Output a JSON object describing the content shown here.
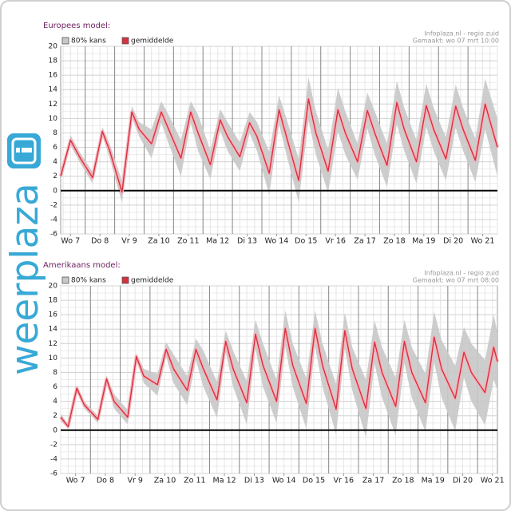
{
  "logo": "weerplaza",
  "chart_data": [
    {
      "type": "line",
      "title": "Europees model:",
      "source": "Infoplaza.nl - regio zuid",
      "created": "Gemaakt: wo 07 mrt 10:00",
      "xlim": [
        4,
        360
      ],
      "ylim": [
        -6,
        20
      ],
      "yticks": [
        -6,
        -4,
        -2,
        0,
        2,
        4,
        6,
        8,
        10,
        12,
        14,
        16,
        18,
        20
      ],
      "grid": true,
      "xticks": [
        {
          "value": 12,
          "label": "Wo 7"
        },
        {
          "value": 36,
          "label": "Do 8"
        },
        {
          "value": 60,
          "label": "Vr 9"
        },
        {
          "value": 84,
          "label": "Za 10"
        },
        {
          "value": 108,
          "label": "Zo 11"
        },
        {
          "value": 132,
          "label": "Ma 12"
        },
        {
          "value": 156,
          "label": "Di 13"
        },
        {
          "value": 180,
          "label": "Wo 14"
        },
        {
          "value": 204,
          "label": "Do 15"
        },
        {
          "value": 228,
          "label": "Vr 16"
        },
        {
          "value": 252,
          "label": "Za 17"
        },
        {
          "value": 276,
          "label": "Zo 18"
        },
        {
          "value": 300,
          "label": "Ma 19"
        },
        {
          "value": 324,
          "label": "Di 20"
        },
        {
          "value": 348,
          "label": "Wo 21"
        }
      ],
      "x": [
        4,
        12,
        20,
        30,
        38,
        44,
        54,
        62,
        68,
        78,
        86,
        92,
        102,
        110,
        116,
        126,
        134,
        140,
        150,
        158,
        164,
        174,
        182,
        188,
        198,
        206,
        212,
        222,
        230,
        236,
        246,
        254,
        260,
        270,
        278,
        284,
        294,
        302,
        308,
        318,
        326,
        332,
        342,
        350,
        360
      ],
      "series": [
        {
          "name": "80% kans",
          "color": "#c8c8c8",
          "low": [
            1.5,
            6.3,
            3.8,
            1.0,
            7.6,
            4.5,
            -1.7,
            10.1,
            7.5,
            4.5,
            9.4,
            6.5,
            2.0,
            9.4,
            5.5,
            1.6,
            8.3,
            5.5,
            2.7,
            7.9,
            5.5,
            -0.6,
            9.2,
            5.0,
            -1.6,
            9.7,
            5.0,
            -0.3,
            8.2,
            5.0,
            1.5,
            8.6,
            5.0,
            0.5,
            9.2,
            5.5,
            1.0,
            8.8,
            5.5,
            1.4,
            8.7,
            5.5,
            1.2,
            8.5,
            2.0
          ],
          "high": [
            2.5,
            7.7,
            5.2,
            2.6,
            8.8,
            6.5,
            1.3,
            11.7,
            9.5,
            8.5,
            12.4,
            10.5,
            7.0,
            12.4,
            10.5,
            5.6,
            11.3,
            9.5,
            6.7,
            10.9,
            9.5,
            5.4,
            13.2,
            10.0,
            4.4,
            15.7,
            11.0,
            5.7,
            14.2,
            11.0,
            6.5,
            13.6,
            11.0,
            6.5,
            15.2,
            11.5,
            7.0,
            14.8,
            11.5,
            7.4,
            14.7,
            11.5,
            7.2,
            15.5,
            10.0
          ]
        },
        {
          "name": "gemiddelde",
          "color": "#d9303f",
          "values": [
            2,
            7,
            4.5,
            1.8,
            8.2,
            5.5,
            -0.2,
            10.9,
            8.5,
            6.5,
            10.9,
            8.5,
            4.5,
            10.9,
            8,
            3.6,
            9.8,
            7.5,
            4.7,
            9.4,
            7.5,
            2.4,
            11.2,
            7.5,
            1.4,
            12.7,
            8,
            2.7,
            11.2,
            8,
            4.0,
            11.1,
            8,
            3.5,
            12.2,
            8.5,
            4.0,
            11.8,
            8.5,
            4.4,
            11.7,
            8.5,
            4.2,
            12.0,
            6
          ]
        }
      ]
    },
    {
      "type": "line",
      "title": "Amerikaans model:",
      "source": "Infoplaza.nl - regio zuid",
      "created": "Gemaakt: wo 07 mrt 08:00",
      "xlim": [
        0,
        352
      ],
      "ylim": [
        -6,
        20
      ],
      "yticks": [
        -6,
        -4,
        -2,
        0,
        2,
        4,
        6,
        8,
        10,
        12,
        14,
        16,
        18,
        20
      ],
      "grid": true,
      "xticks": [
        {
          "value": 12,
          "label": "Wo 7"
        },
        {
          "value": 36,
          "label": "Do 8"
        },
        {
          "value": 60,
          "label": "Vr 9"
        },
        {
          "value": 84,
          "label": "Za 10"
        },
        {
          "value": 108,
          "label": "Zo 11"
        },
        {
          "value": 132,
          "label": "Ma 12"
        },
        {
          "value": 156,
          "label": "Di 13"
        },
        {
          "value": 180,
          "label": "Wo 14"
        },
        {
          "value": 204,
          "label": "Do 15"
        },
        {
          "value": 228,
          "label": "Vr 16"
        },
        {
          "value": 252,
          "label": "Za 17"
        },
        {
          "value": 276,
          "label": "Zo 18"
        },
        {
          "value": 300,
          "label": "Ma 19"
        },
        {
          "value": 324,
          "label": "Di 20"
        },
        {
          "value": 348,
          "label": "Wo 21"
        }
      ],
      "x": [
        0,
        6,
        13,
        19,
        30,
        37,
        43,
        54,
        61,
        67,
        78,
        85,
        91,
        102,
        109,
        115,
        126,
        133,
        139,
        150,
        157,
        163,
        174,
        181,
        187,
        198,
        205,
        211,
        222,
        229,
        235,
        246,
        253,
        259,
        270,
        277,
        283,
        294,
        301,
        307,
        318,
        325,
        331,
        342,
        349,
        352
      ],
      "series": [
        {
          "name": "80% kans",
          "color": "#c8c8c8",
          "low": [
            1.3,
            0.2,
            5.3,
            3.0,
            1.0,
            6.6,
            3.0,
            0.8,
            9.7,
            6.5,
            4.8,
            10.2,
            6.5,
            3.5,
            9.7,
            6.0,
            1.7,
            10.8,
            6.0,
            0.8,
            11.3,
            6.0,
            1.0,
            11.6,
            6.0,
            0.2,
            11.6,
            6.0,
            -0.6,
            11.3,
            5.5,
            -1.0,
            9.2,
            4.5,
            -0.7,
            9.3,
            4.5,
            -0.2,
            9.4,
            4.5,
            -0.1,
            7.3,
            4.0,
            0.7,
            7.0,
            5.5
          ],
          "high": [
            2.3,
            0.8,
            6.3,
            4.0,
            2.0,
            7.6,
            5.0,
            2.8,
            10.7,
            8.5,
            7.8,
            12.2,
            10.5,
            7.5,
            12.7,
            11.0,
            6.7,
            13.8,
            11.0,
            6.8,
            15.3,
            12.0,
            7.0,
            16.6,
            12.0,
            7.2,
            16.6,
            12.0,
            6.4,
            16.3,
            11.5,
            7.0,
            15.2,
            11.5,
            7.3,
            15.3,
            11.5,
            7.8,
            16.4,
            12.5,
            8.9,
            14.3,
            12.0,
            9.7,
            16.0,
            13.5
          ]
        },
        {
          "name": "gemiddelde",
          "color": "#d9303f",
          "values": [
            1.8,
            0.5,
            5.8,
            3.5,
            1.5,
            7.1,
            4.0,
            1.8,
            10.2,
            7.5,
            6.3,
            11.2,
            8.5,
            5.5,
            11.2,
            8.5,
            4.2,
            12.3,
            8.5,
            3.8,
            13.3,
            9,
            4.0,
            14.1,
            9,
            3.7,
            14.1,
            9,
            2.9,
            13.8,
            8.5,
            3.0,
            12.2,
            8,
            3.3,
            12.3,
            8,
            3.8,
            12.9,
            8.5,
            4.4,
            10.8,
            8,
            5.2,
            11.5,
            9.5
          ]
        }
      ]
    }
  ]
}
